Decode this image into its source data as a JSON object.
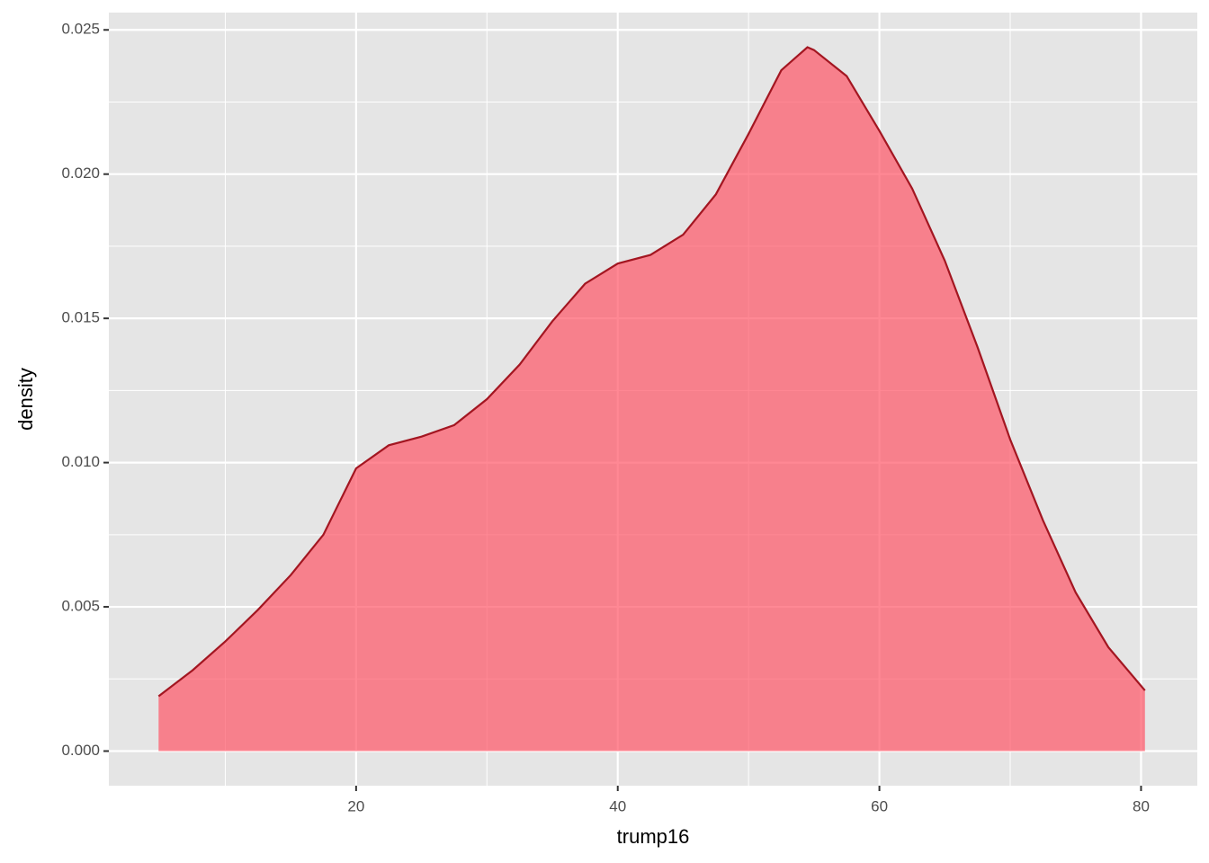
{
  "chart_data": {
    "type": "density",
    "xlabel": "trump16",
    "ylabel": "density",
    "x": [
      4.9,
      7.5,
      10,
      12.5,
      15,
      17.5,
      20,
      22.5,
      25,
      27.5,
      30,
      32.5,
      35,
      37.5,
      40,
      42.5,
      45,
      47.5,
      50,
      52.5,
      54.5,
      55,
      57.5,
      60,
      62.5,
      65,
      67.5,
      70,
      72.5,
      75,
      77.5,
      80.3
    ],
    "values": [
      0.0019,
      0.0028,
      0.0038,
      0.0049,
      0.0061,
      0.0075,
      0.0098,
      0.0106,
      0.0109,
      0.0113,
      0.0122,
      0.0134,
      0.0149,
      0.0162,
      0.0169,
      0.0172,
      0.0179,
      0.0193,
      0.0214,
      0.0236,
      0.0244,
      0.0243,
      0.0234,
      0.0215,
      0.0195,
      0.017,
      0.014,
      0.0108,
      0.008,
      0.0055,
      0.0036,
      0.0021
    ],
    "color": "#a31621",
    "fill": "#ff5567",
    "fill_opacity": 0.7,
    "xlim": [
      1.1,
      84.3
    ],
    "ylim": [
      -0.0012,
      0.0256
    ],
    "xticks": [
      20,
      40,
      60,
      80
    ],
    "yticks": [
      {
        "value": 0,
        "label": "0.000"
      },
      0.005,
      {
        "value": 0.01,
        "label": "0.010"
      },
      0.015,
      {
        "value": 0.02,
        "label": "0.020"
      },
      0.025
    ],
    "grid": true
  }
}
